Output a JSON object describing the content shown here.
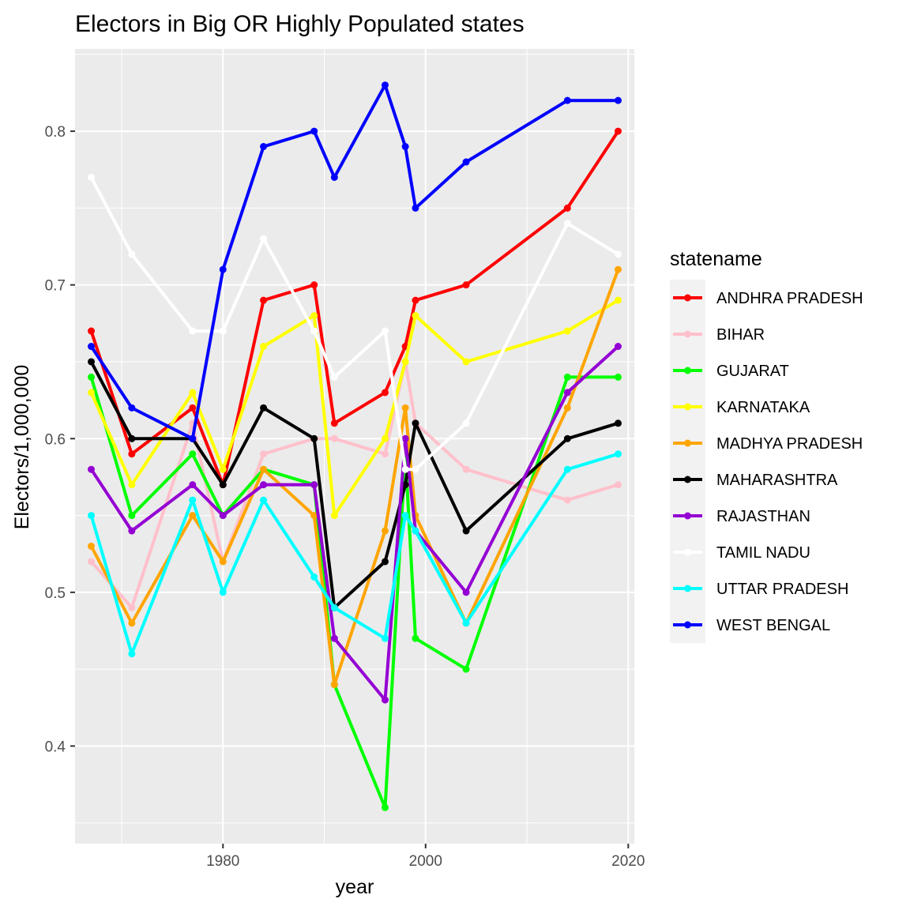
{
  "chart_data": {
    "type": "line",
    "title": "Electors in Big OR Highly Populated states",
    "xlabel": "year",
    "ylabel": "Electors/1,000,000",
    "xlim": [
      1965.4,
      2020.6
    ],
    "ylim": [
      0.3365,
      0.8535
    ],
    "x_ticks": [
      1980,
      2000,
      2020
    ],
    "y_ticks": [
      0.4,
      0.5,
      0.6,
      0.7,
      0.8
    ],
    "grid": true,
    "legend_title": "statename",
    "legend_position": "right",
    "series": [
      {
        "name": "ANDHRA PRADESH",
        "color": "#ff0000",
        "points": [
          [
            1967,
            0.67
          ],
          [
            1971,
            0.59
          ],
          [
            1977,
            0.62
          ],
          [
            1980,
            0.57
          ],
          [
            1984,
            0.69
          ],
          [
            1989,
            0.7
          ],
          [
            1991,
            0.61
          ],
          [
            1996,
            0.63
          ],
          [
            1998,
            0.66
          ],
          [
            1999,
            0.69
          ],
          [
            2004,
            0.7
          ],
          [
            2014,
            0.75
          ],
          [
            2019,
            0.8
          ]
        ]
      },
      {
        "name": "BIHAR",
        "color": "#ffc0cb",
        "points": [
          [
            1967,
            0.52
          ],
          [
            1971,
            0.49
          ],
          [
            1977,
            0.61
          ],
          [
            1980,
            0.52
          ],
          [
            1984,
            0.59
          ],
          [
            1989,
            0.6
          ],
          [
            1991,
            0.6
          ],
          [
            1996,
            0.59
          ],
          [
            1998,
            0.65
          ],
          [
            1999,
            0.61
          ],
          [
            2004,
            0.58
          ],
          [
            2014,
            0.56
          ],
          [
            2019,
            0.57
          ]
        ]
      },
      {
        "name": "GUJARAT",
        "color": "#00ff00",
        "points": [
          [
            1967,
            0.64
          ],
          [
            1971,
            0.55
          ],
          [
            1977,
            0.59
          ],
          [
            1980,
            0.55
          ],
          [
            1984,
            0.58
          ],
          [
            1989,
            0.57
          ],
          [
            1991,
            0.44
          ],
          [
            1996,
            0.36
          ],
          [
            1998,
            0.59
          ],
          [
            1999,
            0.47
          ],
          [
            2004,
            0.45
          ],
          [
            2014,
            0.64
          ],
          [
            2019,
            0.64
          ]
        ]
      },
      {
        "name": "KARNATAKA",
        "color": "#ffff00",
        "points": [
          [
            1967,
            0.63
          ],
          [
            1971,
            0.57
          ],
          [
            1977,
            0.63
          ],
          [
            1980,
            0.58
          ],
          [
            1984,
            0.66
          ],
          [
            1989,
            0.68
          ],
          [
            1991,
            0.55
          ],
          [
            1996,
            0.6
          ],
          [
            1998,
            0.65
          ],
          [
            1999,
            0.68
          ],
          [
            2004,
            0.65
          ],
          [
            2014,
            0.67
          ],
          [
            2019,
            0.69
          ]
        ]
      },
      {
        "name": "MADHYA PRADESH",
        "color": "#ffa500",
        "points": [
          [
            1967,
            0.53
          ],
          [
            1971,
            0.48
          ],
          [
            1977,
            0.55
          ],
          [
            1980,
            0.52
          ],
          [
            1984,
            0.58
          ],
          [
            1989,
            0.55
          ],
          [
            1991,
            0.44
          ],
          [
            1996,
            0.54
          ],
          [
            1998,
            0.62
          ],
          [
            1999,
            0.55
          ],
          [
            2004,
            0.48
          ],
          [
            2014,
            0.62
          ],
          [
            2019,
            0.71
          ]
        ]
      },
      {
        "name": "MAHARASHTRA",
        "color": "#000000",
        "points": [
          [
            1967,
            0.65
          ],
          [
            1971,
            0.6
          ],
          [
            1977,
            0.6
          ],
          [
            1980,
            0.57
          ],
          [
            1984,
            0.62
          ],
          [
            1989,
            0.6
          ],
          [
            1991,
            0.49
          ],
          [
            1996,
            0.52
          ],
          [
            1998,
            0.57
          ],
          [
            1999,
            0.61
          ],
          [
            2004,
            0.54
          ],
          [
            2014,
            0.6
          ],
          [
            2019,
            0.61
          ]
        ]
      },
      {
        "name": "RAJASTHAN",
        "color": "#9400d3",
        "points": [
          [
            1967,
            0.58
          ],
          [
            1971,
            0.54
          ],
          [
            1977,
            0.57
          ],
          [
            1980,
            0.55
          ],
          [
            1984,
            0.57
          ],
          [
            1989,
            0.57
          ],
          [
            1991,
            0.47
          ],
          [
            1996,
            0.43
          ],
          [
            1998,
            0.6
          ],
          [
            1999,
            0.54
          ],
          [
            2004,
            0.5
          ],
          [
            2014,
            0.63
          ],
          [
            2019,
            0.66
          ]
        ]
      },
      {
        "name": "TAMIL NADU",
        "color": "#ffffff",
        "points": [
          [
            1967,
            0.77
          ],
          [
            1971,
            0.72
          ],
          [
            1977,
            0.67
          ],
          [
            1980,
            0.67
          ],
          [
            1984,
            0.73
          ],
          [
            1989,
            0.67
          ],
          [
            1991,
            0.64
          ],
          [
            1996,
            0.67
          ],
          [
            1998,
            0.58
          ],
          [
            1999,
            0.58
          ],
          [
            2004,
            0.61
          ],
          [
            2014,
            0.74
          ],
          [
            2019,
            0.72
          ]
        ]
      },
      {
        "name": "UTTAR PRADESH",
        "color": "#00ffff",
        "points": [
          [
            1967,
            0.55
          ],
          [
            1971,
            0.46
          ],
          [
            1977,
            0.56
          ],
          [
            1980,
            0.5
          ],
          [
            1984,
            0.56
          ],
          [
            1989,
            0.51
          ],
          [
            1991,
            0.49
          ],
          [
            1996,
            0.47
          ],
          [
            1998,
            0.55
          ],
          [
            1999,
            0.54
          ],
          [
            2004,
            0.48
          ],
          [
            2014,
            0.58
          ],
          [
            2019,
            0.59
          ]
        ]
      },
      {
        "name": "WEST BENGAL",
        "color": "#0000ff",
        "points": [
          [
            1967,
            0.66
          ],
          [
            1971,
            0.62
          ],
          [
            1977,
            0.6
          ],
          [
            1980,
            0.71
          ],
          [
            1984,
            0.79
          ],
          [
            1989,
            0.8
          ],
          [
            1991,
            0.77
          ],
          [
            1996,
            0.83
          ],
          [
            1998,
            0.79
          ],
          [
            1999,
            0.75
          ],
          [
            2004,
            0.78
          ],
          [
            2014,
            0.82
          ],
          [
            2019,
            0.82
          ]
        ]
      }
    ]
  },
  "style": {
    "panel_background": "#ebebeb",
    "grid_color": "#ffffff",
    "legend_key_background": "#f2f2f2"
  }
}
